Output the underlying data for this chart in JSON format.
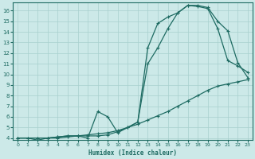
{
  "xlabel": "Humidex (Indice chaleur)",
  "background_color": "#cce9e8",
  "grid_color": "#a8d0ce",
  "line_color": "#1e6b62",
  "xlim": [
    -0.5,
    23.5
  ],
  "ylim": [
    3.8,
    16.8
  ],
  "xticks": [
    0,
    1,
    2,
    3,
    4,
    5,
    6,
    7,
    8,
    9,
    10,
    11,
    12,
    13,
    14,
    15,
    16,
    17,
    18,
    19,
    20,
    21,
    22,
    23
  ],
  "yticks": [
    4,
    5,
    6,
    7,
    8,
    9,
    10,
    11,
    12,
    13,
    14,
    15,
    16
  ],
  "curve_straight_x": [
    0,
    1,
    2,
    3,
    4,
    5,
    6,
    7,
    8,
    9,
    10,
    11,
    12,
    13,
    14,
    15,
    16,
    17,
    18,
    19,
    20,
    21,
    22,
    23
  ],
  "curve_straight_y": [
    4.0,
    4.0,
    4.0,
    4.0,
    4.0,
    4.1,
    4.2,
    4.3,
    4.4,
    4.5,
    4.7,
    5.0,
    5.3,
    5.7,
    6.1,
    6.5,
    7.0,
    7.5,
    8.0,
    8.5,
    8.9,
    9.1,
    9.3,
    9.5
  ],
  "curve_top_x": [
    0,
    2,
    3,
    4,
    5,
    6,
    7,
    8,
    9,
    10,
    11,
    12,
    13,
    14,
    15,
    16,
    17,
    18,
    19,
    20,
    21,
    22,
    23
  ],
  "curve_top_y": [
    4.0,
    4.0,
    4.0,
    4.1,
    4.2,
    4.2,
    4.2,
    4.2,
    4.3,
    4.6,
    5.0,
    5.5,
    12.5,
    14.8,
    15.4,
    15.8,
    16.5,
    16.5,
    16.3,
    15.0,
    14.1,
    11.1,
    9.7
  ],
  "curve_mid_x": [
    0,
    1,
    2,
    3,
    4,
    5,
    6,
    7,
    8,
    9,
    10,
    11,
    12,
    13,
    14,
    15,
    16,
    17,
    18,
    19,
    20,
    21,
    22,
    23
  ],
  "curve_mid_y": [
    4.0,
    4.0,
    3.8,
    4.0,
    4.1,
    4.2,
    4.2,
    4.0,
    6.5,
    6.0,
    4.5,
    5.0,
    5.5,
    11.0,
    12.5,
    14.3,
    15.8,
    16.5,
    16.4,
    16.2,
    14.3,
    11.3,
    10.8,
    10.2
  ]
}
